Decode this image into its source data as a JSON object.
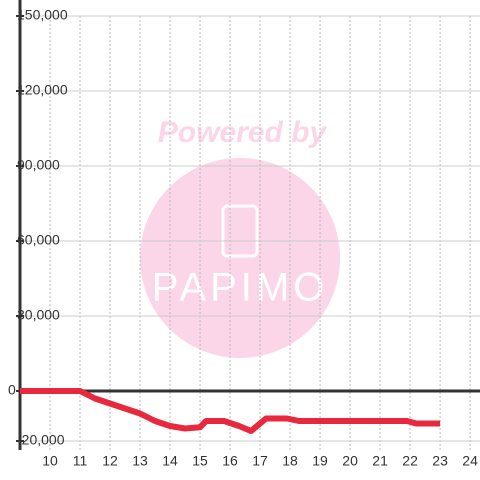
{
  "chart_data": {
    "type": "line",
    "x": [
      9,
      10,
      11,
      11.5,
      12,
      12.5,
      13,
      13.5,
      14,
      14.5,
      15,
      15.2,
      15.8,
      16.3,
      16.7,
      17.2,
      17.9,
      18.3,
      21.9,
      22.2,
      23
    ],
    "series": [
      {
        "color": "#e8283c",
        "values": [
          0,
          0,
          0,
          -3000,
          -5000,
          -7000,
          -9000,
          -12000,
          -14000,
          -15000,
          -14500,
          -12000,
          -12000,
          -14000,
          -16000,
          -11000,
          -11000,
          -12000,
          -12000,
          -13000,
          -13000
        ]
      }
    ],
    "xlim": [
      9,
      24.33
    ],
    "xticks": [
      10,
      11,
      12,
      13,
      14,
      15,
      16,
      17,
      18,
      19,
      20,
      21,
      22,
      23,
      24
    ],
    "ylim": [
      -20000,
      150000
    ],
    "yticks": [
      {
        "value": -20000,
        "label": "-20,000"
      },
      0,
      {
        "value": 30000,
        "label": "30,000"
      },
      {
        "value": 60000,
        "label": "60,000"
      },
      {
        "value": 90000,
        "label": "90,000"
      },
      {
        "value": 120000,
        "label": "120,000"
      },
      {
        "value": 150000,
        "label": "150,000"
      }
    ],
    "grid": true,
    "watermark": {
      "top": "Powered by",
      "logo": "PAPIMO"
    }
  }
}
